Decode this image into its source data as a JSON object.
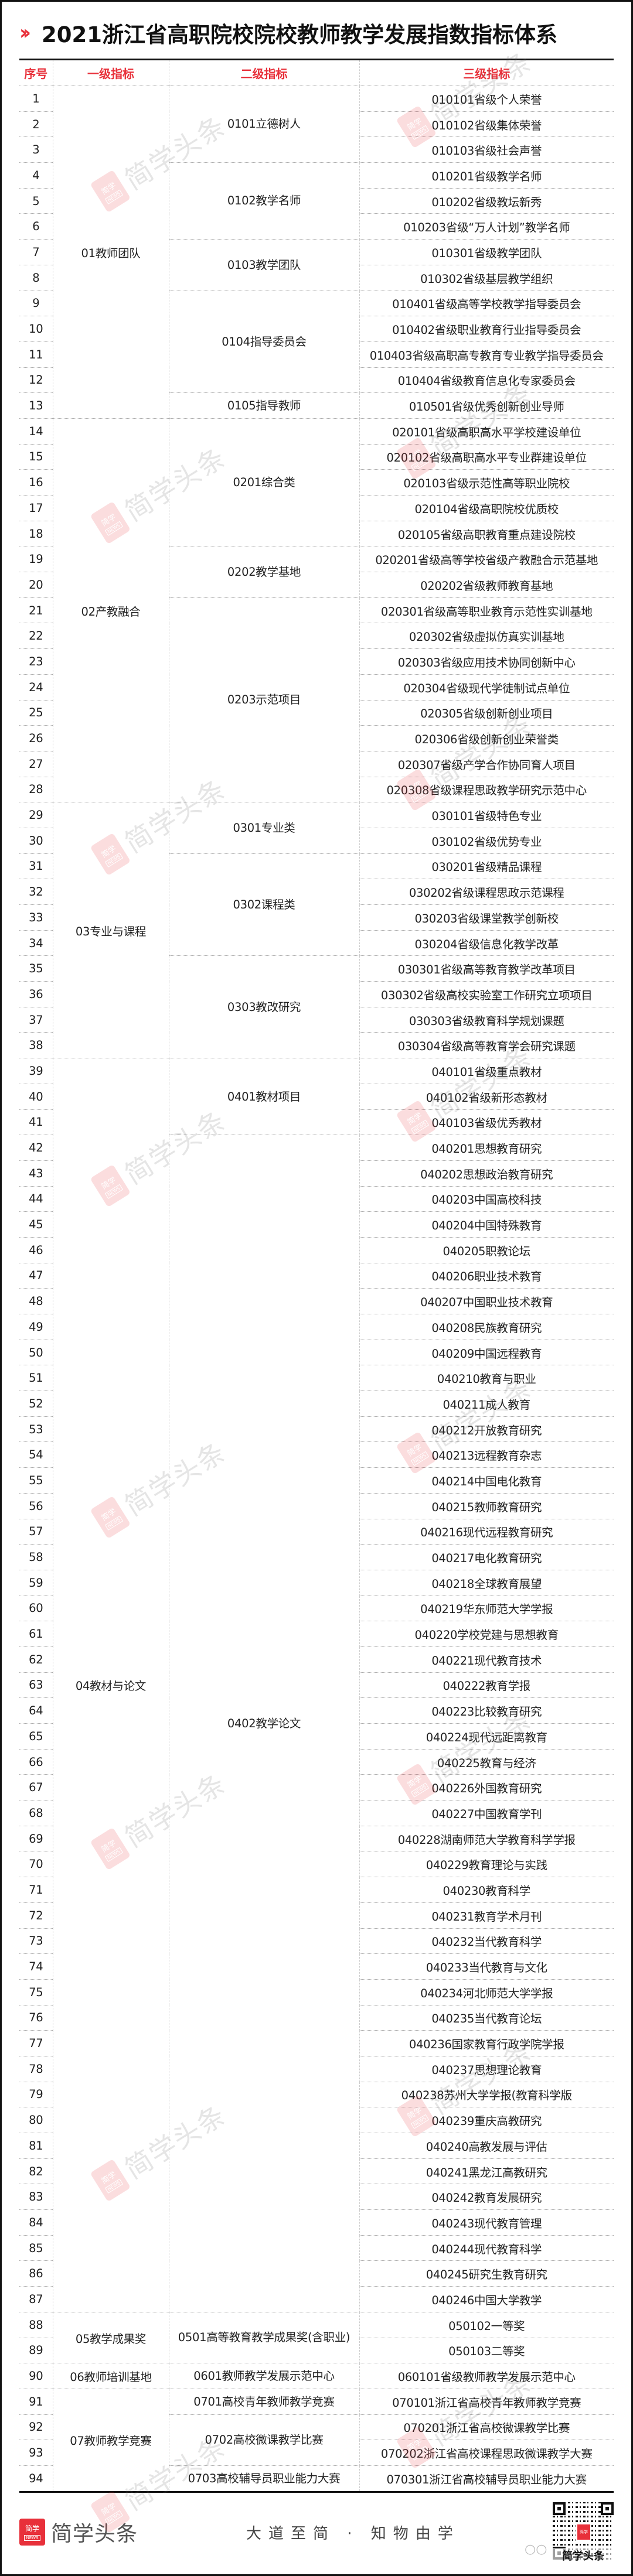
{
  "title": {
    "chevron": "»",
    "text": "2021浙江省高职院校院校教师教学发展指数指标体系"
  },
  "header": [
    "序号",
    "一级指标",
    "二级指标",
    "三级指标"
  ],
  "colors": {
    "accent": "#e8303a",
    "text": "#222222",
    "border": "#111111"
  },
  "groups": [
    {
      "label": "01教师团队",
      "subs": [
        {
          "label": "0101立德树人",
          "items": [
            {
              "no": "1",
              "name": "010101省级个人荣誉"
            },
            {
              "no": "2",
              "name": "010102省级集体荣誉"
            },
            {
              "no": "3",
              "name": "010103省级社会声誉"
            }
          ]
        },
        {
          "label": "0102教学名师",
          "items": [
            {
              "no": "4",
              "name": "010201省级教学名师"
            },
            {
              "no": "5",
              "name": "010202省级教坛新秀"
            },
            {
              "no": "6",
              "name": "010203省级“万人计划”教学名师"
            }
          ]
        },
        {
          "label": "0103教学团队",
          "items": [
            {
              "no": "7",
              "name": "010301省级教学团队"
            },
            {
              "no": "8",
              "name": "010302省级基层教学组织"
            }
          ]
        },
        {
          "label": "0104指导委员会",
          "items": [
            {
              "no": "9",
              "name": "010401省级高等学校教学指导委员会"
            },
            {
              "no": "10",
              "name": "010402省级职业教育行业指导委员会"
            },
            {
              "no": "11",
              "name": "010403省级高职高专教育专业教学指导委员会"
            },
            {
              "no": "12",
              "name": "010404省级教育信息化专家委员会"
            }
          ]
        },
        {
          "label": "0105指导教师",
          "items": [
            {
              "no": "13",
              "name": "010501省级优秀创新创业导师"
            }
          ]
        }
      ]
    },
    {
      "label": "02产教融合",
      "subs": [
        {
          "label": "0201综合类",
          "items": [
            {
              "no": "14",
              "name": "020101省级高职高水平学校建设单位"
            },
            {
              "no": "15",
              "name": "020102省级高职高水平专业群建设单位"
            },
            {
              "no": "16",
              "name": "020103省级示范性高等职业院校"
            },
            {
              "no": "17",
              "name": "020104省级高职院校优质校"
            },
            {
              "no": "18",
              "name": "020105省级高职教育重点建设院校"
            }
          ]
        },
        {
          "label": "0202教学基地",
          "items": [
            {
              "no": "19",
              "name": "020201省级高等学校省级产教融合示范基地"
            },
            {
              "no": "20",
              "name": "020202省级教师教育基地"
            }
          ]
        },
        {
          "label": "0203示范项目",
          "items": [
            {
              "no": "21",
              "name": "020301省级高等职业教育示范性实训基地"
            },
            {
              "no": "22",
              "name": "020302省级虚拟仿真实训基地"
            },
            {
              "no": "23",
              "name": "020303省级应用技术协同创新中心"
            },
            {
              "no": "24",
              "name": "020304省级现代学徒制试点单位"
            },
            {
              "no": "25",
              "name": "020305省级创新创业项目"
            },
            {
              "no": "26",
              "name": "020306省级创新创业荣誉类"
            },
            {
              "no": "27",
              "name": "020307省级产学合作协同育人项目"
            },
            {
              "no": "28",
              "name": "020308省级课程思政教学研究示范中心"
            }
          ]
        }
      ]
    },
    {
      "label": "03专业与课程",
      "subs": [
        {
          "label": "0301专业类",
          "items": [
            {
              "no": "29",
              "name": "030101省级特色专业"
            },
            {
              "no": "30",
              "name": "030102省级优势专业"
            }
          ]
        },
        {
          "label": "0302课程类",
          "items": [
            {
              "no": "31",
              "name": "030201省级精品课程"
            },
            {
              "no": "32",
              "name": "030202省级课程思政示范课程"
            },
            {
              "no": "33",
              "name": "030203省级课堂教学创新校"
            },
            {
              "no": "34",
              "name": "030204省级信息化教学改革"
            }
          ]
        },
        {
          "label": "0303教改研究",
          "items": [
            {
              "no": "35",
              "name": "030301省级高等教育教学改革项目"
            },
            {
              "no": "36",
              "name": "030302省级高校实验室工作研究立项项目"
            },
            {
              "no": "37",
              "name": "030303省级教育科学规划课题"
            },
            {
              "no": "38",
              "name": "030304省级高等教育学会研究课题"
            }
          ]
        }
      ]
    },
    {
      "label": "04教材与论文",
      "subs": [
        {
          "label": "0401教材项目",
          "items": [
            {
              "no": "39",
              "name": "040101省级重点教材"
            },
            {
              "no": "40",
              "name": "040102省级新形态教材"
            },
            {
              "no": "41",
              "name": "040103省级优秀教材"
            }
          ]
        },
        {
          "label": "0402教学论文",
          "items": [
            {
              "no": "42",
              "name": "040201思想教育研究"
            },
            {
              "no": "43",
              "name": "040202思想政治教育研究"
            },
            {
              "no": "44",
              "name": "040203中国高校科技"
            },
            {
              "no": "45",
              "name": "040204中国特殊教育"
            },
            {
              "no": "46",
              "name": "040205职教论坛"
            },
            {
              "no": "47",
              "name": "040206职业技术教育"
            },
            {
              "no": "48",
              "name": "040207中国职业技术教育"
            },
            {
              "no": "49",
              "name": "040208民族教育研究"
            },
            {
              "no": "50",
              "name": "040209中国远程教育"
            },
            {
              "no": "51",
              "name": "040210教育与职业"
            },
            {
              "no": "52",
              "name": "040211成人教育"
            },
            {
              "no": "53",
              "name": "040212开放教育研究"
            },
            {
              "no": "54",
              "name": "040213远程教育杂志"
            },
            {
              "no": "55",
              "name": "040214中国电化教育"
            },
            {
              "no": "56",
              "name": "040215教师教育研究"
            },
            {
              "no": "57",
              "name": "040216现代远程教育研究"
            },
            {
              "no": "58",
              "name": "040217电化教育研究"
            },
            {
              "no": "59",
              "name": "040218全球教育展望"
            },
            {
              "no": "60",
              "name": "040219华东师范大学学报"
            },
            {
              "no": "61",
              "name": "040220学校党建与思想教育"
            },
            {
              "no": "62",
              "name": "040221现代教育技术"
            },
            {
              "no": "63",
              "name": "040222教育学报"
            },
            {
              "no": "64",
              "name": "040223比较教育研究"
            },
            {
              "no": "65",
              "name": "040224现代远距离教育"
            },
            {
              "no": "66",
              "name": "040225教育与经济"
            },
            {
              "no": "67",
              "name": "040226外国教育研究"
            },
            {
              "no": "68",
              "name": "040227中国教育学刊"
            },
            {
              "no": "69",
              "name": "040228湖南师范大学教育科学学报"
            },
            {
              "no": "70",
              "name": "040229教育理论与实践"
            },
            {
              "no": "71",
              "name": "040230教育科学"
            },
            {
              "no": "72",
              "name": "040231教育学术月刊"
            },
            {
              "no": "73",
              "name": "040232当代教育科学"
            },
            {
              "no": "74",
              "name": "040233当代教育与文化"
            },
            {
              "no": "75",
              "name": "040234河北师范大学学报"
            },
            {
              "no": "76",
              "name": "040235当代教育论坛"
            },
            {
              "no": "77",
              "name": "040236国家教育行政学院学报"
            },
            {
              "no": "78",
              "name": "040237思想理论教育"
            },
            {
              "no": "79",
              "name": "040238苏州大学学报(教育科学版"
            },
            {
              "no": "80",
              "name": "040239重庆高教研究"
            },
            {
              "no": "81",
              "name": "040240高教发展与评估"
            },
            {
              "no": "82",
              "name": "040241黑龙江高教研究"
            },
            {
              "no": "83",
              "name": "040242教育发展研究"
            },
            {
              "no": "84",
              "name": "040243现代教育管理"
            },
            {
              "no": "85",
              "name": "040244现代教育科学"
            },
            {
              "no": "86",
              "name": "040245研究生教育研究"
            },
            {
              "no": "87",
              "name": "040246中国大学教学"
            }
          ]
        }
      ]
    },
    {
      "label": "05教学成果奖",
      "subs": [
        {
          "label": "0501高等教育教学成果奖(含职业)",
          "items": [
            {
              "no": "88",
              "name": "050102一等奖"
            },
            {
              "no": "89",
              "name": "050103二等奖"
            }
          ]
        }
      ]
    },
    {
      "label": "06教师培训基地",
      "subs": [
        {
          "label": "0601教师教学发展示范中心",
          "items": [
            {
              "no": "90",
              "name": "060101省级教师教学发展示范中心"
            }
          ]
        }
      ]
    },
    {
      "label": "07教师教学竞赛",
      "subs": [
        {
          "label": "0701高校青年教师教学竞赛",
          "items": [
            {
              "no": "91",
              "name": "070101浙江省高校青年教师教学竞赛"
            }
          ]
        },
        {
          "label": "0702高校微课教学比赛",
          "items": [
            {
              "no": "92",
              "name": "070201浙江省高校微课教学比赛"
            },
            {
              "no": "93",
              "name": "070202浙江省高校课程思政微课教学大赛"
            }
          ]
        },
        {
          "label": "0703高校辅导员职业能力大赛",
          "items": [
            {
              "no": "94",
              "name": "070301浙江省高校辅导员职业能力大赛"
            }
          ]
        }
      ]
    }
  ],
  "watermark": {
    "icon_top": "简学",
    "icon_bottom": "NEWS",
    "text": "简学头条"
  },
  "footer": {
    "logo_icon_top": "简学",
    "logo_icon_bottom": "NEWS",
    "logo_text": "简学头条",
    "slogan": "大道至简 · 知物由学",
    "qr_label": "简学头条",
    "qr_center": "简学"
  }
}
